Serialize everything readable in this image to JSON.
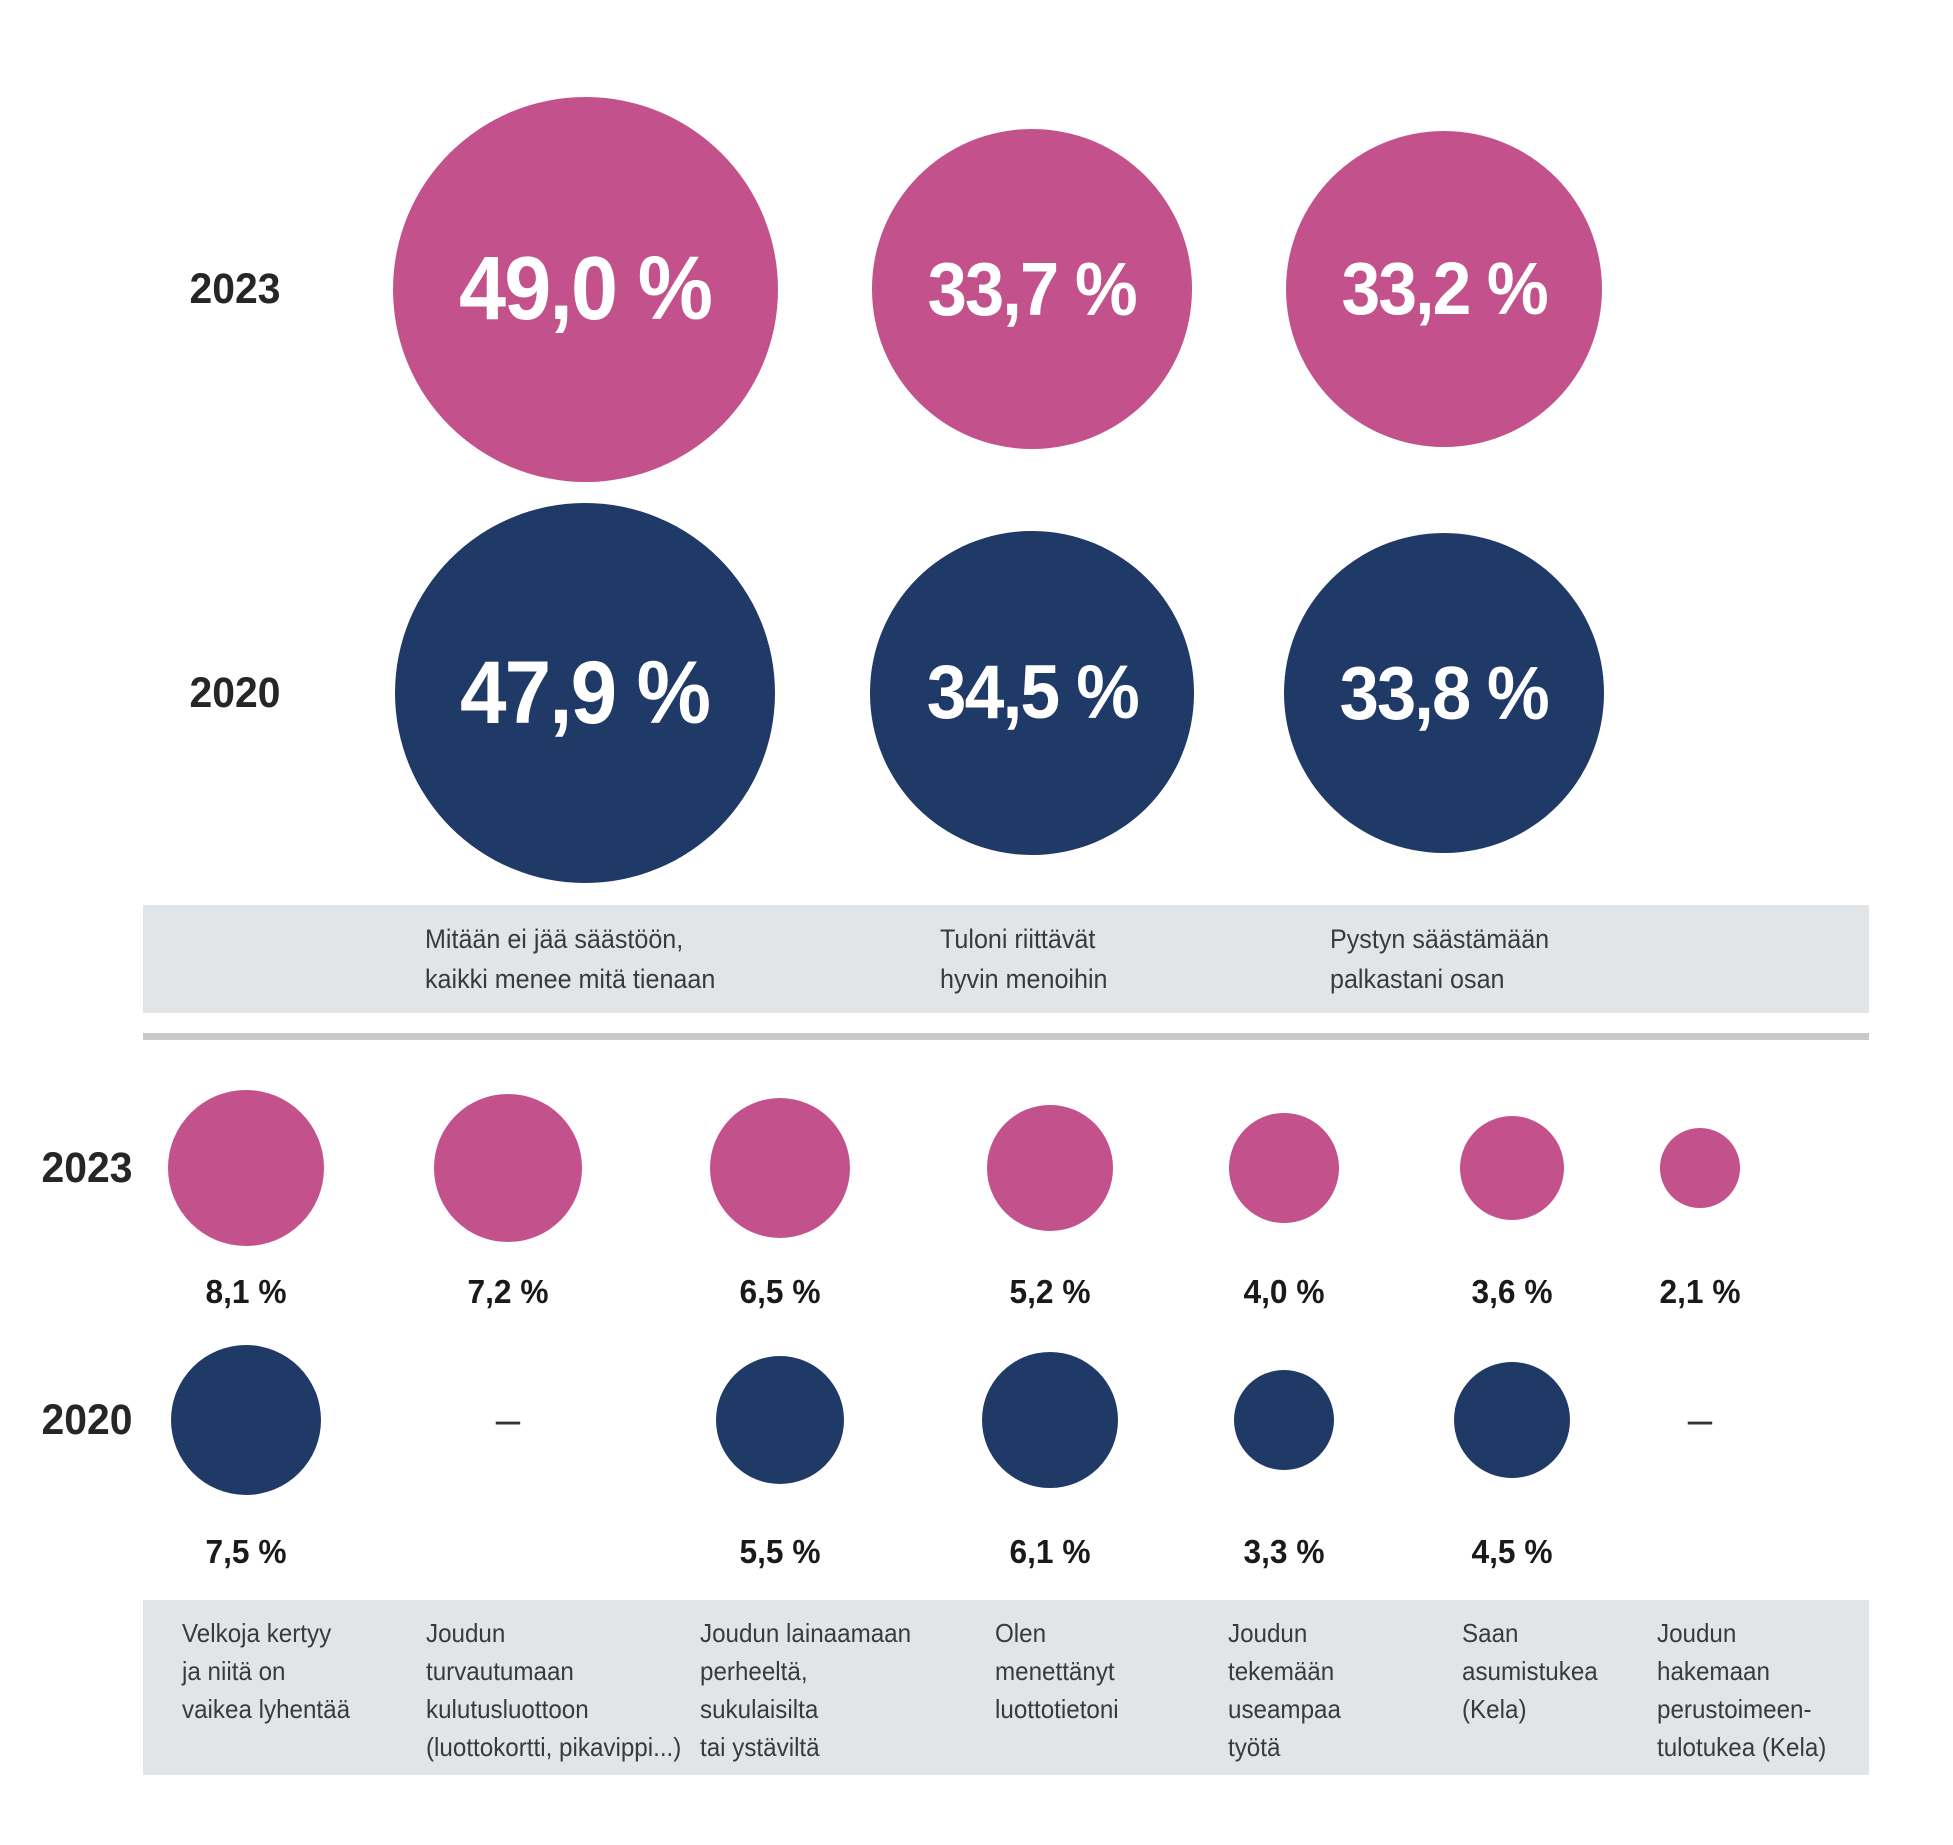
{
  "colors": {
    "pink_2023": "#c3528c",
    "navy_2020": "#1f3a67",
    "band_gray": "#e2e5e7",
    "divider_gray": "#c7c8ca",
    "bubble_text": "#ffffff",
    "text_dark": "#262626"
  },
  "chart_data": [
    {
      "type": "bubble",
      "unit": "%",
      "layout_hint": "bubble diameter proportional to sqrt(value); values shown inside bubbles",
      "value_position": "inside",
      "rows": [
        {
          "year": "2023",
          "color": "#c3528c",
          "values": [
            49.0,
            33.7,
            33.2
          ],
          "labels": [
            "49,0 %",
            "33,7 %",
            "33,2 %"
          ]
        },
        {
          "year": "2020",
          "color": "#1f3a67",
          "values": [
            47.9,
            34.5,
            33.8
          ],
          "labels": [
            "47,9 %",
            "34,5 %",
            "33,8 %"
          ]
        }
      ],
      "categories": [
        {
          "lines": [
            "Mitään ei jää säästöön,",
            "kaikki menee mitä tienaan"
          ]
        },
        {
          "lines": [
            "Tuloni riittävät",
            "hyvin menoihin"
          ]
        },
        {
          "lines": [
            "Pystyn säästämään",
            "palkastani osan"
          ]
        }
      ]
    },
    {
      "type": "bubble",
      "unit": "%",
      "layout_hint": "bubble diameter proportional to sqrt(value); values shown below bubbles; dash = no data",
      "value_position": "below",
      "rows": [
        {
          "year": "2023",
          "color": "#c3528c",
          "values": [
            8.1,
            7.2,
            6.5,
            5.2,
            4.0,
            3.6,
            2.1
          ],
          "labels": [
            "8,1 %",
            "7,2 %",
            "6,5 %",
            "5,2 %",
            "4,0 %",
            "3,6 %",
            "2,1 %"
          ]
        },
        {
          "year": "2020",
          "color": "#1f3a67",
          "values": [
            7.5,
            null,
            5.5,
            6.1,
            3.3,
            4.5,
            null
          ],
          "labels": [
            "7,5 %",
            "–",
            "5,5 %",
            "6,1 %",
            "3,3 %",
            "4,5 %",
            "–"
          ]
        }
      ],
      "categories": [
        {
          "lines": [
            "Velkoja kertyy",
            "ja niitä on",
            "vaikea lyhentää"
          ]
        },
        {
          "lines": [
            "Joudun",
            "turvautumaan",
            "kulutusluottoon",
            "(luottokortti, pikavippi...)"
          ]
        },
        {
          "lines": [
            "Joudun lainaamaan",
            "perheeltä,",
            "sukulaisilta",
            "tai ystäviltä"
          ]
        },
        {
          "lines": [
            "Olen",
            "menettänyt",
            "luottotietoni"
          ]
        },
        {
          "lines": [
            "Joudun",
            "tekemään",
            "useampaa",
            "työtä"
          ]
        },
        {
          "lines": [
            "Saan",
            "asumistukea",
            "(Kela)"
          ]
        },
        {
          "lines": [
            "Joudun",
            "hakemaan",
            "perustoimeen-",
            "tulotukea (Kela)"
          ]
        }
      ]
    }
  ]
}
